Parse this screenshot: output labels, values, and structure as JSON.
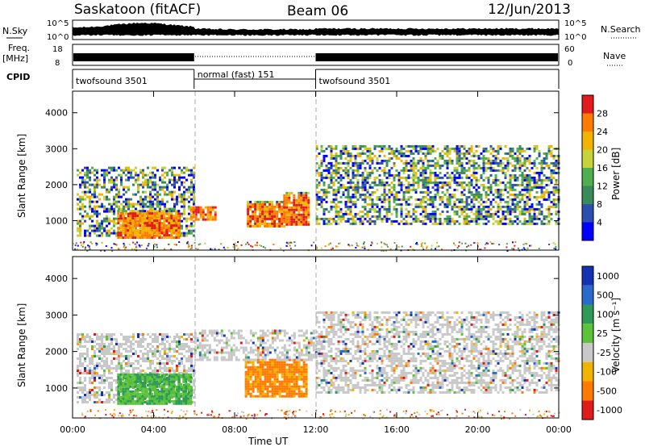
{
  "header": {
    "station": "Saskatoon (fitACF)",
    "beam": "Beam 06",
    "date": "12/Jun/2013"
  },
  "strip": {
    "nsky_label": "N.Sky",
    "nsearch_label": "N.Search",
    "nsky_ticks": [
      "10^5",
      "10^0"
    ],
    "nsearch_ticks": [
      "10^5",
      "10^0"
    ],
    "freq_label": "Freq.",
    "freq_unit": "[MHz]",
    "freq_ticks": [
      "18",
      "8"
    ],
    "nave_label": "Nave",
    "nave_ticks": [
      "60",
      "0"
    ],
    "cpid_label": "CPID",
    "modes": [
      {
        "name": "twofsound 3501",
        "start": 0,
        "end": 6
      },
      {
        "name": "normal (fast) 151",
        "start": 6,
        "end": 12
      },
      {
        "name": "twofsound 3501",
        "start": 12,
        "end": 24
      }
    ]
  },
  "chart_data": [
    {
      "type": "heatmap",
      "panel": "power",
      "ylabel": "Slant Range [km]",
      "x_range_hours": [
        0,
        24
      ],
      "ylim": [
        180,
        4600
      ],
      "yticks": [
        1000,
        2000,
        3000,
        4000
      ],
      "colorbar": {
        "label": "Power [dB]",
        "ticks": [
          4,
          8,
          12,
          16,
          20,
          24,
          28
        ],
        "colors": [
          "#0000ff",
          "#2d4fb0",
          "#3a8a5a",
          "#4fae4f",
          "#c8d23a",
          "#f0b400",
          "#ff7a00",
          "#e11b1b"
        ]
      },
      "regions": [
        {
          "x0": 0.2,
          "x1": 6.0,
          "y0": 600,
          "y1": 2500,
          "level": "mixed"
        },
        {
          "x0": 2.2,
          "x1": 5.3,
          "y0": 550,
          "y1": 1300,
          "level": "high"
        },
        {
          "x0": 5.8,
          "x1": 7.0,
          "y0": 1000,
          "y1": 1400,
          "level": "high"
        },
        {
          "x0": 8.6,
          "x1": 10.4,
          "y0": 850,
          "y1": 1550,
          "level": "high"
        },
        {
          "x0": 10.4,
          "x1": 11.6,
          "y0": 900,
          "y1": 1800,
          "level": "high"
        },
        {
          "x0": 12.0,
          "x1": 24.0,
          "y0": 900,
          "y1": 3100,
          "level": "mixed"
        }
      ]
    },
    {
      "type": "heatmap",
      "panel": "velocity",
      "ylabel": "Slant Range [km]",
      "xlabel": "Time UT",
      "x_range_hours": [
        0,
        24
      ],
      "xticks": [
        "00:00",
        "04:00",
        "08:00",
        "12:00",
        "16:00",
        "20:00",
        "00:00"
      ],
      "ylim": [
        180,
        4600
      ],
      "yticks": [
        1000,
        2000,
        3000,
        4000
      ],
      "colorbar": {
        "label": "Velocity [m s⁻¹]",
        "ticks": [
          1000,
          500,
          100,
          25,
          -25,
          -100,
          -500,
          -1000
        ],
        "colors": [
          "#1432b4",
          "#2a6acb",
          "#2e9a55",
          "#5cc23a",
          "#c8c8c8",
          "#f0b400",
          "#ff7a00",
          "#e11b1b"
        ]
      },
      "regions": [
        {
          "x0": 0.2,
          "x1": 6.0,
          "y0": 600,
          "y1": 2500,
          "level": "mixed"
        },
        {
          "x0": 2.2,
          "x1": 5.9,
          "y0": 600,
          "y1": 1400,
          "level": "positive"
        },
        {
          "x0": 8.5,
          "x1": 11.5,
          "y0": 800,
          "y1": 1800,
          "level": "negative"
        },
        {
          "x0": 6.0,
          "x1": 12.0,
          "y0": 1800,
          "y1": 2600,
          "level": "ground"
        },
        {
          "x0": 12.0,
          "x1": 24.0,
          "y0": 900,
          "y1": 3100,
          "level": "ground"
        }
      ]
    }
  ]
}
